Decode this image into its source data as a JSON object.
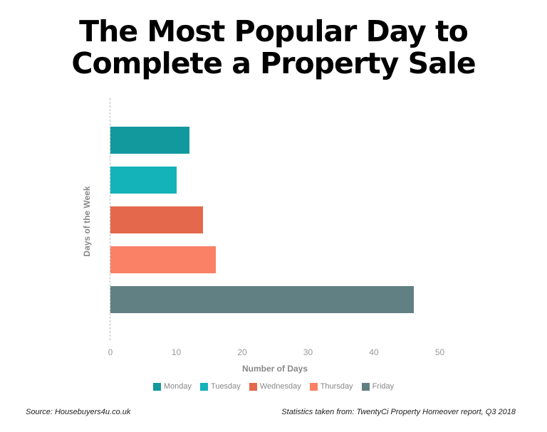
{
  "header": {
    "title_line1": "The Most Popular Day to",
    "title_line2": "Complete a Property Sale"
  },
  "footer": {
    "source": "Source: Housebuyers4u.co.uk",
    "statistics": "Statistics taken from: TwentyCi Property Homeover report, Q3 2018"
  },
  "chart_data": {
    "type": "bar",
    "orientation": "horizontal",
    "title": "The Most Popular Day to Complete a Property Sale",
    "xlabel": "Number of Days",
    "ylabel": "Days of the Week",
    "categories": [
      "Monday",
      "Tuesday",
      "Wednesday",
      "Thursday",
      "Friday"
    ],
    "values": [
      12,
      10,
      14,
      16,
      46
    ],
    "colors": [
      "#12999e",
      "#13b3b9",
      "#e4694c",
      "#fa8066",
      "#618084"
    ],
    "xlim": [
      0,
      50
    ],
    "xticks": [
      "0",
      "10",
      "20",
      "30",
      "40",
      "50"
    ],
    "grid": false,
    "legend_position": "bottom"
  }
}
